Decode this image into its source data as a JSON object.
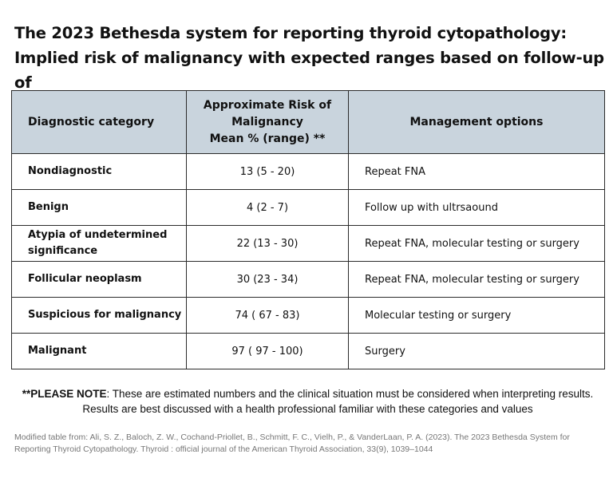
{
  "title": {
    "line1": "The 2023 Bethesda system for reporting thyroid cytopathology:",
    "line2": "Implied risk of malignancy with expected ranges based on follow-up of"
  },
  "table": {
    "headers": {
      "category": "Diagnostic category",
      "risk_line1": "Approximate Risk of",
      "risk_line2": "Malignancy",
      "risk_line3": "Mean % (range) **",
      "management": "Management options"
    },
    "rows": [
      {
        "category": "Nondiagnostic",
        "risk": "13 (5 - 20)",
        "management": "Repeat FNA"
      },
      {
        "category": "Benign",
        "risk": "4 (2 - 7)",
        "management": "Follow up with ultrsaound"
      },
      {
        "category": "Atypia of undetermined significance",
        "risk": "22 (13 - 30)",
        "management": "Repeat FNA, molecular testing or surgery"
      },
      {
        "category": "Follicular neoplasm",
        "risk": "30 (23 - 34)",
        "management": "Repeat FNA, molecular testing or surgery"
      },
      {
        "category": "Suspicious for malignancy",
        "risk": "74 ( 67 - 83)",
        "management": "Molecular testing or surgery"
      },
      {
        "category": "Malignant",
        "risk": "97 ( 97 - 100)",
        "management": "Surgery"
      }
    ]
  },
  "note": {
    "label": "**PLEASE NOTE",
    "line1": ": These are estimated numbers and the clinical situation must be considered when interpreting results.",
    "line2": "Results are best discussed with a health professional familiar with these categories and values"
  },
  "source": {
    "line1": "Modified table from: Ali, S. Z., Baloch, Z. W., Cochand-Priollet, B., Schmitt, F. C., Vielh, P., & VanderLaan, P. A. (2023). The 2023 Bethesda System for",
    "line2": "Reporting Thyroid Cytopathology. Thyroid : official journal of the American Thyroid Association, 33(9), 1039–1044"
  }
}
